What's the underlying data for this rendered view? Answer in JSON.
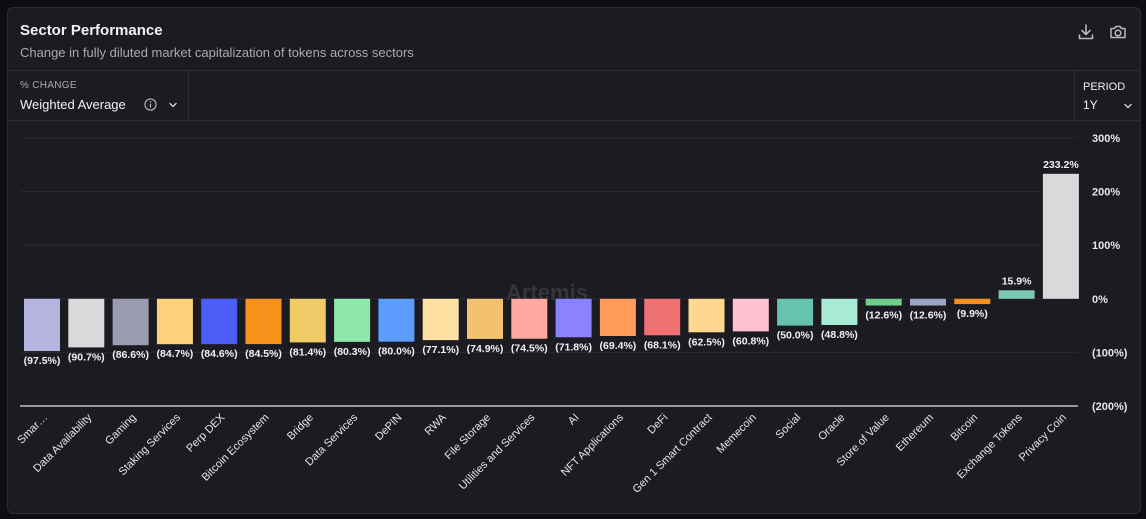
{
  "header": {
    "title": "Sector Performance",
    "subtitle": "Change in fully diluted market capitalization of tokens across sectors"
  },
  "controls": {
    "metric_label": "% CHANGE",
    "metric_value": "Weighted Average",
    "period_label": "PERIOD",
    "period_value": "1Y"
  },
  "icons": {
    "download": "download-icon",
    "screenshot": "camera-icon",
    "info": "info-icon"
  },
  "watermark": "Artemis",
  "chart_data": {
    "type": "bar",
    "categories": [
      "Smar…",
      "Data Availability",
      "Gaming",
      "Staking Services",
      "Perp DEX",
      "Bitcoin Ecosystem",
      "Bridge",
      "Data Services",
      "DePIN",
      "RWA",
      "File Storage",
      "Utilities and Services",
      "AI",
      "NFT Applications",
      "DeFi",
      "Gen 1 Smart Contract",
      "Memecoin",
      "Social",
      "Oracle",
      "Store of Value",
      "Ethereum",
      "Bitcoin",
      "Exchange Tokens",
      "Privacy Coin"
    ],
    "values": [
      -97.5,
      -90.7,
      -86.6,
      -84.7,
      -84.6,
      -84.5,
      -81.4,
      -80.3,
      -80.0,
      -77.1,
      -74.9,
      -74.5,
      -71.8,
      -69.4,
      -68.1,
      -62.5,
      -60.8,
      -50.0,
      -48.8,
      -12.6,
      -12.6,
      -9.9,
      15.9,
      233.2
    ],
    "labels": [
      "(97.5%)",
      "(90.7%)",
      "(86.6%)",
      "(84.7%)",
      "(84.6%)",
      "(84.5%)",
      "(81.4%)",
      "(80.3%)",
      "(80.0%)",
      "(77.1%)",
      "(74.9%)",
      "(74.5%)",
      "(71.8%)",
      "(69.4%)",
      "(68.1%)",
      "(62.5%)",
      "(60.8%)",
      "(50.0%)",
      "(48.8%)",
      "(12.6%)",
      "(12.6%)",
      "(9.9%)",
      "15.9%",
      "233.2%"
    ],
    "colors": [
      "#b4b4de",
      "#d9d9d9",
      "#9b9bb0",
      "#ffd07a",
      "#4b5ef7",
      "#f7931a",
      "#efcb68",
      "#8ee8ab",
      "#5d9cff",
      "#ffe0a3",
      "#f3c270",
      "#ffa9a0",
      "#8a82ff",
      "#ff9c5b",
      "#ee7070",
      "#ffd890",
      "#ffc1cf",
      "#67c2b0",
      "#a8ead3",
      "#6fcf8a",
      "#9ca3c6",
      "#f7931a",
      "#7fc8b8",
      "#d9d9d9"
    ],
    "yticks": [
      "300%",
      "200%",
      "100%",
      "0%",
      "(100%)",
      "(200%)"
    ],
    "ylim": [
      -200,
      300
    ],
    "ytick_values": [
      300,
      200,
      100,
      0,
      -100,
      -200
    ],
    "grid": true,
    "xlabel": "",
    "ylabel": ""
  }
}
